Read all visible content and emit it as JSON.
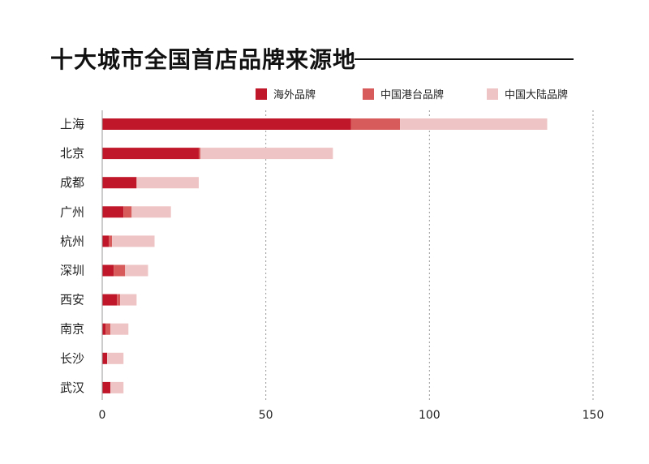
{
  "chart_data": {
    "type": "bar",
    "orientation": "horizontal",
    "stacked": true,
    "title": "十大城市全国首店品牌来源地",
    "categories": [
      "上海",
      "北京",
      "成都",
      "广州",
      "杭州",
      "深圳",
      "西安",
      "南京",
      "长沙",
      "武汉"
    ],
    "series": [
      {
        "name": "海外品牌",
        "color": "#c0182a",
        "values": [
          76,
          29.5,
          10.5,
          6.5,
          2,
          3.5,
          4.5,
          1,
          1.5,
          2.5
        ]
      },
      {
        "name": "中国港台品牌",
        "color": "#d85b5b",
        "values": [
          15,
          0.5,
          0,
          2.5,
          1,
          3.5,
          1,
          1.5,
          0,
          0
        ]
      },
      {
        "name": "中国大陆品牌",
        "color": "#efc4c4",
        "values": [
          45,
          40.5,
          19,
          12,
          13,
          7,
          5,
          5.5,
          5,
          4
        ]
      }
    ],
    "xlim": [
      0,
      150
    ],
    "x_ticks": [
      0,
      50,
      100,
      150
    ],
    "grid": {
      "x": true,
      "style": "dotted"
    },
    "legend_position": "top-right"
  }
}
